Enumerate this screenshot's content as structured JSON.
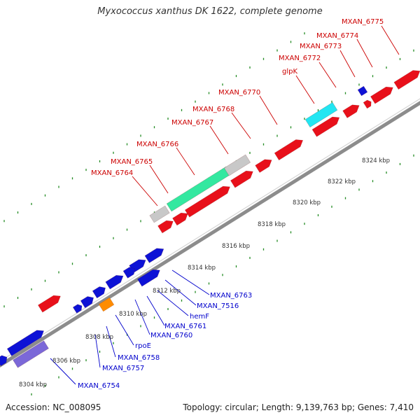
{
  "title": "Myxococcus xanthus DK 1622, complete genome",
  "footer": {
    "accession": "Accession: NC_008095",
    "summary": "Topology: circular; Length: 9,139,763 bp; Genes: 7,410"
  },
  "colors": {
    "forward_gene": "#e8101a",
    "reverse_gene": "#0d12d6",
    "backbone": "#8c8c8c",
    "tick": "#228b22",
    "forward_label": "#cc0000",
    "reverse_label": "#0000cc",
    "grey": "#c8c8c8",
    "mint": "#33e8a0",
    "cyan": "#22e6f2",
    "orange": "#ff8c00",
    "purple": "#7b68d8"
  },
  "scale_labels": [
    "8304 kbp",
    "8306 kbp",
    "8308 kbp",
    "8310 kbp",
    "8312 kbp",
    "8314 kbp",
    "8316 kbp",
    "8318 kbp",
    "8320 kbp",
    "8322 kbp",
    "8324 kbp"
  ],
  "forward_labels": [
    "MXAN_6764",
    "MXAN_6765",
    "MXAN_6766",
    "MXAN_6767",
    "MXAN_6768",
    "MXAN_6770",
    "glpK",
    "MXAN_6772",
    "MXAN_6773",
    "MXAN_6774",
    "MXAN_6775"
  ],
  "reverse_labels": [
    "MXAN_6754",
    "MXAN_6757",
    "MXAN_6758",
    "rpoE",
    "MXAN_6760",
    "MXAN_6761",
    "hemF",
    "MXAN_7516",
    "MXAN_6763"
  ]
}
